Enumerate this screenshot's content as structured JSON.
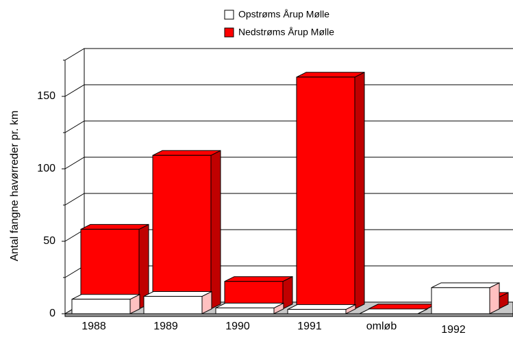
{
  "chart_data": {
    "type": "bar3d",
    "ylabel": "Antal fangne havørreder pr. km",
    "categories": [
      "1988",
      "1989",
      "1990",
      "1991",
      "omløb",
      "1992"
    ],
    "series": [
      {
        "name": "Opstrøms Årup Mølle",
        "color": "#ffffff",
        "side_color": "#ffc0c0",
        "values": [
          10,
          12,
          4,
          3,
          0,
          18
        ]
      },
      {
        "name": "Nedstrøms Årup Mølle",
        "color": "#ff0000",
        "side_color": "#c00000",
        "values": [
          55,
          106,
          19,
          160,
          0,
          8
        ]
      }
    ],
    "ylim": [
      0,
      175
    ],
    "yticks": [
      0,
      50,
      100,
      150
    ],
    "minor_yticks": [
      25,
      75,
      125,
      175
    ],
    "grid": true
  }
}
